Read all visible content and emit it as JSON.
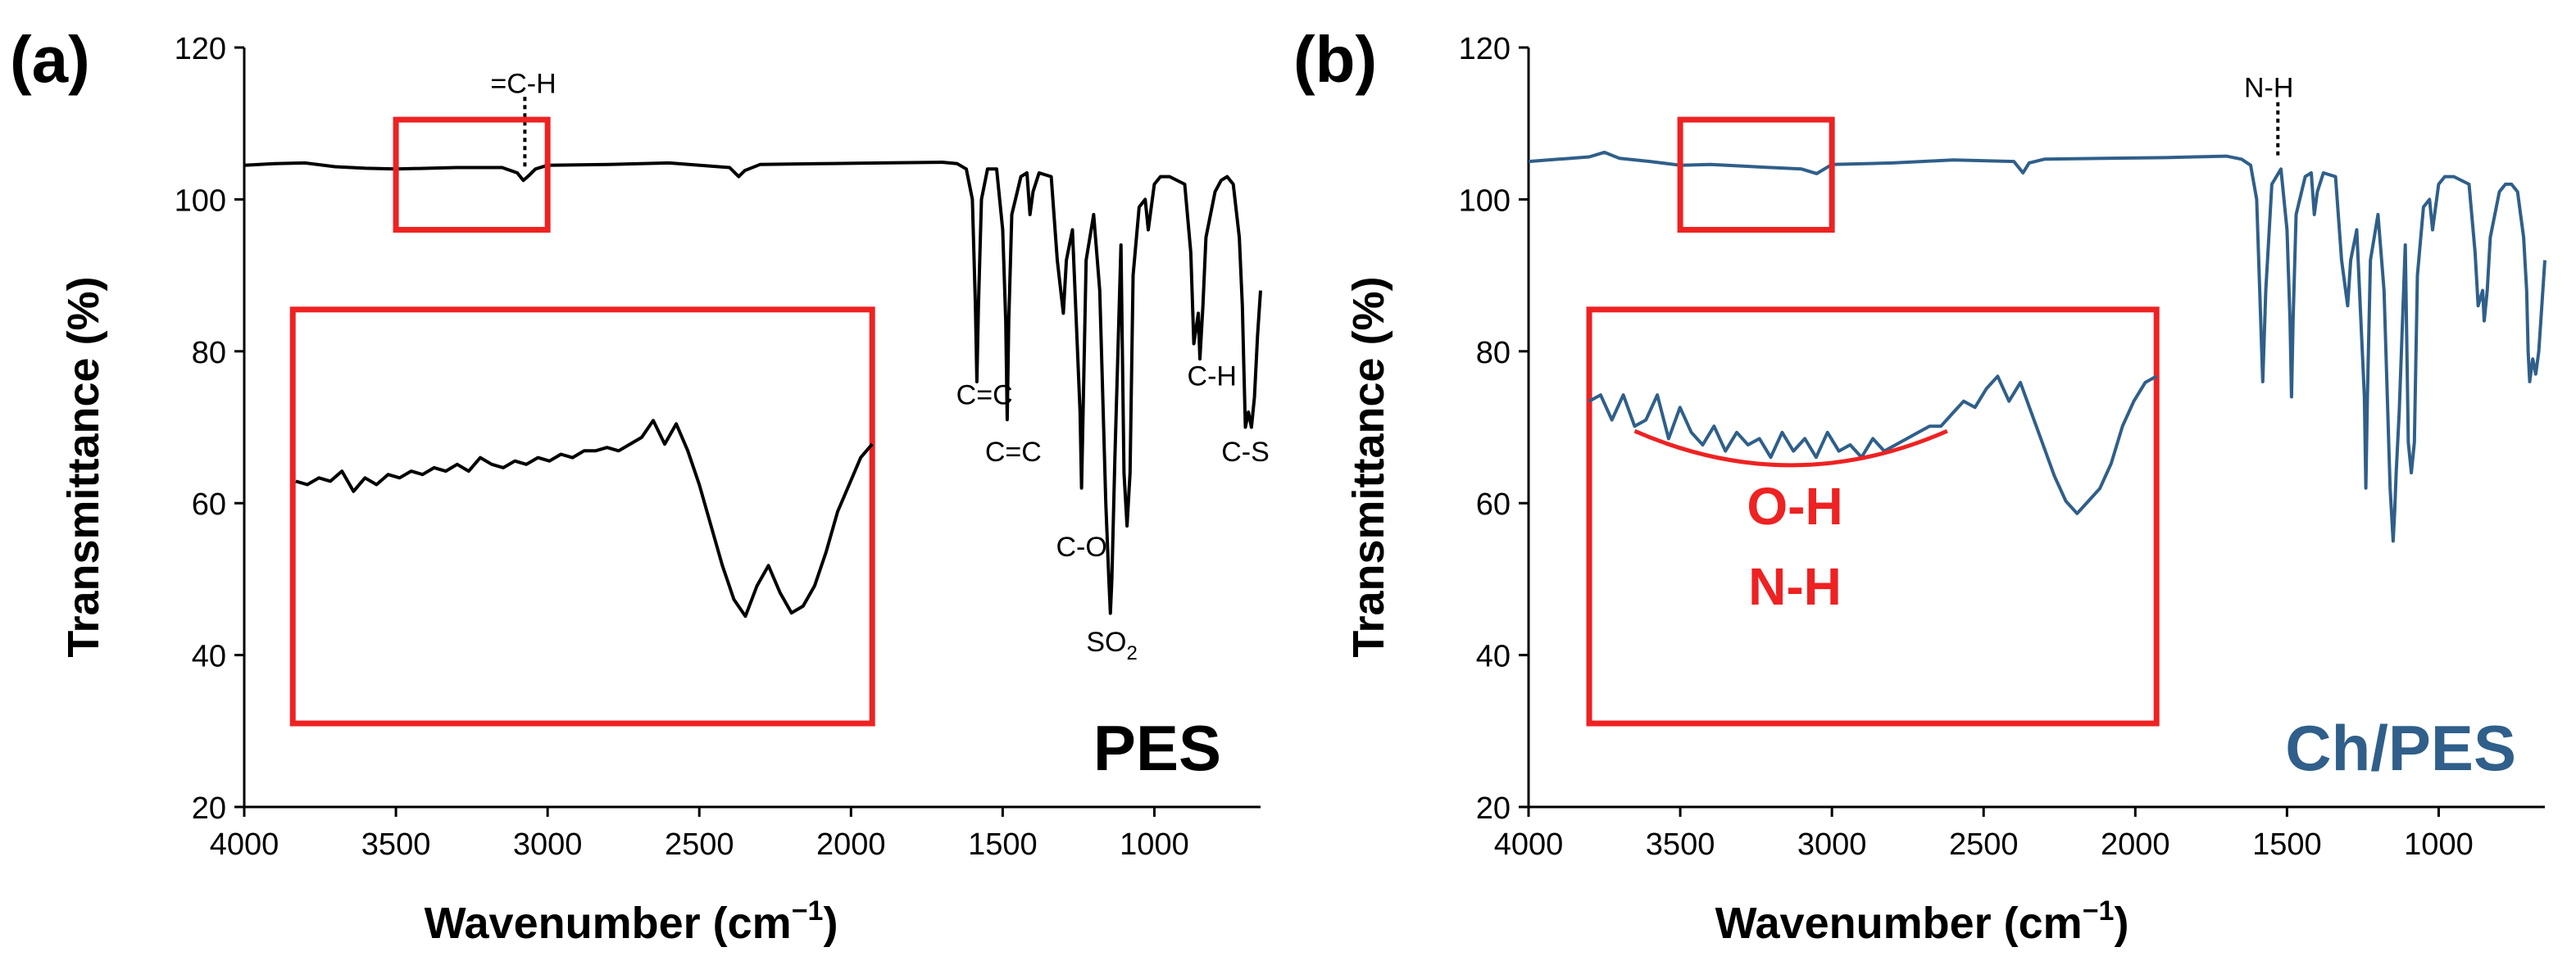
{
  "colors": {
    "pes": "#000000",
    "chpes": "#2f5f8a",
    "highlight": "#ee2222"
  },
  "chart_data": [
    {
      "type": "line",
      "panel_label": "(a)",
      "sample_label": "PES",
      "xlabel": "Wavenumber (cm",
      "xlabel_sup": "−1",
      "xlabel_end": ")",
      "ylabel": "Transmittance (%)",
      "xlim": [
        4000,
        650
      ],
      "ylim": [
        20,
        120
      ],
      "xticks": [
        4000,
        3500,
        3000,
        2500,
        2000,
        1500,
        1000
      ],
      "yticks": [
        20,
        40,
        60,
        80,
        100,
        120
      ],
      "series": [
        {
          "name": "PES",
          "color": "#000000",
          "x": [
            4000,
            3900,
            3800,
            3700,
            3600,
            3500,
            3300,
            3150,
            3100,
            3080,
            3060,
            3040,
            3000,
            2800,
            2600,
            2400,
            2370,
            2350,
            2300,
            2100,
            1900,
            1700,
            1650,
            1620,
            1600,
            1590,
            1585,
            1580,
            1570,
            1550,
            1520,
            1500,
            1490,
            1485,
            1480,
            1470,
            1440,
            1420,
            1410,
            1400,
            1380,
            1340,
            1320,
            1300,
            1290,
            1270,
            1245,
            1240,
            1235,
            1225,
            1200,
            1180,
            1160,
            1150,
            1145,
            1140,
            1130,
            1110,
            1100,
            1090,
            1080,
            1070,
            1050,
            1030,
            1020,
            1000,
            980,
            950,
            900,
            880,
            870,
            855,
            850,
            840,
            830,
            800,
            780,
            760,
            740,
            720,
            710,
            705,
            700,
            690,
            680,
            670,
            660,
            650
          ],
          "y": [
            104.5,
            104.7,
            104.8,
            104.3,
            104.1,
            104.0,
            104.2,
            104.2,
            103.5,
            102.5,
            103.2,
            104.0,
            104.5,
            104.6,
            104.8,
            104.2,
            103.0,
            103.8,
            104.6,
            104.7,
            104.8,
            104.9,
            104.7,
            104.0,
            100.0,
            86.0,
            76.0,
            86.0,
            100.0,
            104.0,
            104.0,
            96.0,
            84.0,
            71.0,
            84.0,
            98.0,
            103.0,
            103.5,
            98.0,
            101.0,
            103.5,
            103.0,
            92.0,
            85.0,
            92.0,
            96.0,
            72.0,
            62.0,
            72.0,
            92.0,
            98.0,
            88.0,
            60.0,
            50.0,
            45.5,
            50.0,
            66.0,
            94.0,
            64.0,
            57.0,
            64.0,
            90.0,
            99.0,
            100.0,
            96.0,
            102.0,
            103.0,
            103.0,
            102.0,
            93.0,
            81.0,
            85.0,
            79.0,
            86.0,
            95.0,
            101.0,
            102.5,
            103.0,
            102.0,
            95.0,
            86.0,
            78.0,
            70.0,
            72.0,
            70.0,
            74.0,
            82.0,
            88.0
          ]
        }
      ],
      "annotations": [
        {
          "text": "=C-H",
          "x": 3080,
          "y": 114,
          "marker_x": 3075,
          "marker_from": 113.5,
          "marker_to": 104.3
        },
        {
          "text": "C=C",
          "x": 1560,
          "y": 73
        },
        {
          "text": "C=C",
          "x": 1465,
          "y": 65.5
        },
        {
          "text": "C-O",
          "x": 1240,
          "y": 53
        },
        {
          "text": "SO",
          "sub": "2",
          "x": 1140,
          "y": 40.5
        },
        {
          "text": "C-H",
          "x": 810,
          "y": 75.5
        },
        {
          "text": "C-S",
          "x": 700,
          "y": 65.5
        }
      ],
      "zoom_box": {
        "x": [
          3500,
          3000
        ],
        "y": [
          96,
          110.5
        ]
      },
      "inset": {
        "box": {
          "x": [
            3840,
            1930
          ],
          "y": [
            31,
            85.5
          ]
        },
        "plot": {
          "x": [
            3830,
            1930
          ],
          "y": [
            42,
            74
          ]
        },
        "data_range": {
          "x": [
            3500,
            3000
          ],
          "y": [
            101.7,
            105.3
          ]
        },
        "series": [
          {
            "x": [
              3500,
              3490,
              3480,
              3470,
              3460,
              3450,
              3440,
              3430,
              3420,
              3410,
              3400,
              3390,
              3380,
              3370,
              3360,
              3350,
              3340,
              3330,
              3320,
              3310,
              3300,
              3290,
              3280,
              3270,
              3260,
              3250,
              3240,
              3230,
              3220,
              3210,
              3200,
              3190,
              3180,
              3170,
              3160,
              3150,
              3140,
              3130,
              3120,
              3110,
              3100,
              3090,
              3080,
              3070,
              3060,
              3050,
              3040,
              3030,
              3020,
              3010,
              3000
            ],
            "y": [
              104.05,
              104.0,
              104.1,
              104.05,
              104.2,
              103.9,
              104.1,
              104.0,
              104.15,
              104.1,
              104.2,
              104.15,
              104.25,
              104.2,
              104.3,
              104.2,
              104.4,
              104.3,
              104.25,
              104.35,
              104.3,
              104.4,
              104.35,
              104.45,
              104.4,
              104.5,
              104.5,
              104.55,
              104.5,
              104.6,
              104.7,
              104.95,
              104.6,
              104.9,
              104.5,
              104.0,
              103.4,
              102.8,
              102.3,
              102.05,
              102.5,
              102.8,
              102.4,
              102.1,
              102.2,
              102.5,
              103.0,
              103.6,
              104.0,
              104.4,
              104.6
            ]
          }
        ]
      }
    },
    {
      "type": "line",
      "panel_label": "(b)",
      "sample_label": "Ch/PES",
      "xlabel": "Wavenumber (cm",
      "xlabel_sup": "−1",
      "xlabel_end": ")",
      "ylabel": "Transmittance (%)",
      "xlim": [
        4000,
        650
      ],
      "ylim": [
        20,
        120
      ],
      "xticks": [
        4000,
        3500,
        3000,
        2500,
        2000,
        1500,
        1000
      ],
      "yticks": [
        20,
        40,
        60,
        80,
        100,
        120
      ],
      "series": [
        {
          "name": "Ch/PES",
          "color": "#2f5f8a",
          "x": [
            4000,
            3900,
            3800,
            3750,
            3700,
            3600,
            3500,
            3400,
            3300,
            3200,
            3100,
            3050,
            3000,
            2800,
            2600,
            2400,
            2370,
            2350,
            2300,
            2100,
            1900,
            1700,
            1650,
            1620,
            1600,
            1590,
            1580,
            1570,
            1550,
            1520,
            1500,
            1490,
            1485,
            1480,
            1470,
            1440,
            1420,
            1410,
            1400,
            1380,
            1340,
            1320,
            1300,
            1290,
            1270,
            1245,
            1240,
            1235,
            1225,
            1200,
            1180,
            1160,
            1150,
            1145,
            1140,
            1130,
            1110,
            1100,
            1090,
            1080,
            1070,
            1050,
            1030,
            1020,
            1000,
            980,
            950,
            900,
            880,
            870,
            855,
            850,
            840,
            830,
            800,
            780,
            760,
            740,
            720,
            710,
            705,
            700,
            690,
            680,
            670,
            660,
            650
          ],
          "y": [
            105.0,
            105.3,
            105.6,
            106.2,
            105.4,
            105.0,
            104.5,
            104.6,
            104.4,
            104.2,
            104.0,
            103.4,
            104.6,
            104.8,
            105.2,
            105.0,
            103.5,
            104.8,
            105.3,
            105.4,
            105.5,
            105.7,
            105.3,
            104.5,
            100.0,
            88.0,
            76.0,
            88.0,
            102.0,
            104.0,
            96.0,
            84.0,
            74.0,
            84.0,
            98.0,
            103.0,
            103.5,
            98.0,
            101.0,
            103.5,
            103.0,
            92.0,
            86.0,
            92.0,
            96.0,
            74.0,
            62.0,
            74.0,
            92.0,
            98.0,
            88.0,
            62.0,
            55.0,
            59.0,
            64.0,
            72.0,
            94.0,
            68.0,
            64.0,
            68.0,
            90.0,
            99.0,
            100.0,
            96.0,
            102.0,
            103.0,
            103.0,
            102.0,
            93.0,
            86.0,
            88.0,
            84.0,
            88.0,
            95.0,
            101.0,
            102.0,
            102.0,
            101.0,
            95.0,
            88.0,
            80.0,
            76.0,
            79.0,
            77.0,
            80.0,
            86.0,
            92.0
          ]
        }
      ],
      "annotations": [
        {
          "text": "N-H",
          "x": 1560,
          "y": 113.5,
          "marker_x": 1530,
          "marker_from": 112.8,
          "marker_to": 105.8
        }
      ],
      "highlight_label": [
        "O-H",
        "N-H"
      ],
      "zoom_box": {
        "x": [
          3500,
          3000
        ],
        "y": [
          96,
          110.5
        ]
      },
      "inset": {
        "box": {
          "x": [
            3800,
            1930
          ],
          "y": [
            31,
            85.5
          ]
        },
        "plot": {
          "x": [
            3800,
            1930
          ],
          "y": [
            57,
            80
          ]
        },
        "data_range": {
          "x": [
            3500,
            3000
          ],
          "y": [
            103.2,
            106.0
          ]
        },
        "curve_label": {
          "x": [
            3650,
            2620
          ],
          "y_ends": 69.5,
          "y_mid": 65
        },
        "series": [
          {
            "x": [
              3500,
              3490,
              3480,
              3470,
              3460,
              3450,
              3440,
              3430,
              3420,
              3410,
              3400,
              3390,
              3380,
              3370,
              3360,
              3350,
              3340,
              3330,
              3320,
              3310,
              3300,
              3290,
              3280,
              3270,
              3260,
              3250,
              3240,
              3230,
              3220,
              3210,
              3200,
              3190,
              3180,
              3170,
              3160,
              3150,
              3140,
              3130,
              3120,
              3110,
              3100,
              3090,
              3080,
              3070,
              3060,
              3050,
              3040,
              3030,
              3020,
              3010,
              3000
            ],
            "y": [
              105.2,
              105.3,
              104.9,
              105.3,
              104.8,
              104.9,
              105.3,
              104.6,
              105.1,
              104.7,
              104.5,
              104.8,
              104.4,
              104.7,
              104.5,
              104.6,
              104.3,
              104.7,
              104.4,
              104.6,
              104.3,
              104.7,
              104.4,
              104.5,
              104.3,
              104.6,
              104.4,
              104.5,
              104.6,
              104.7,
              104.8,
              104.8,
              105.0,
              105.2,
              105.1,
              105.4,
              105.6,
              105.2,
              105.5,
              105.0,
              104.5,
              104.0,
              103.6,
              103.4,
              103.6,
              103.8,
              104.2,
              104.8,
              105.2,
              105.5,
              105.6
            ]
          }
        ]
      }
    }
  ]
}
